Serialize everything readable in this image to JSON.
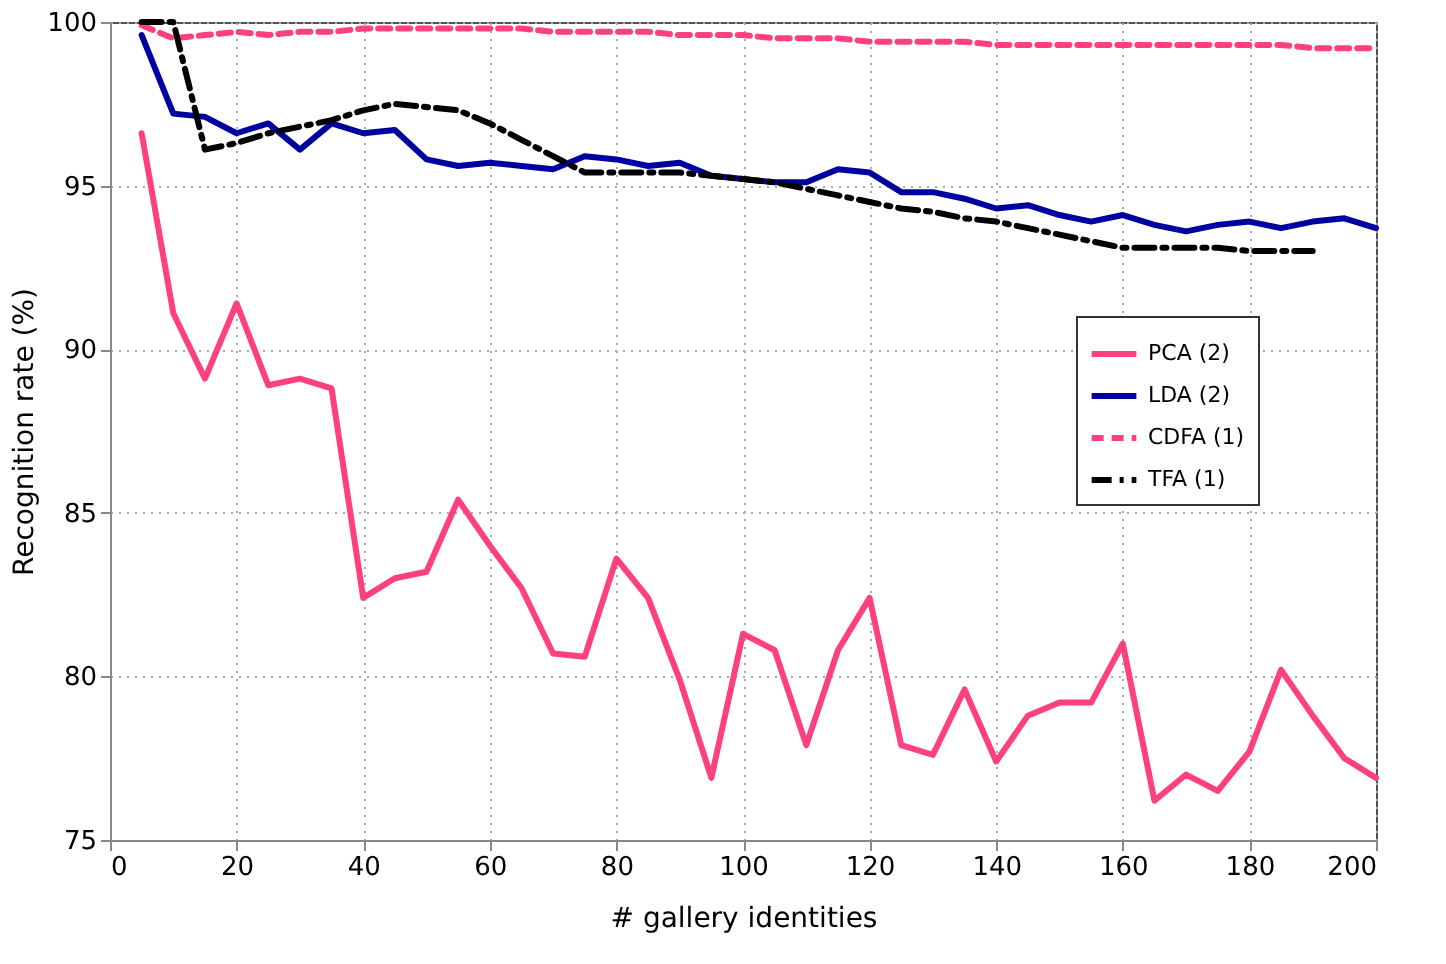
{
  "chart_data": {
    "type": "line",
    "xlabel": "# gallery identities",
    "ylabel": "Recognition rate (%)",
    "x": [
      5,
      10,
      15,
      20,
      25,
      30,
      35,
      40,
      45,
      50,
      55,
      60,
      65,
      70,
      75,
      80,
      85,
      90,
      95,
      100,
      105,
      110,
      115,
      120,
      125,
      130,
      135,
      140,
      145,
      150,
      155,
      160,
      165,
      170,
      175,
      180,
      185,
      190,
      195,
      200
    ],
    "series": [
      {
        "name": "PCA (2)",
        "color": "#ff4080",
        "line_style": "solid",
        "values": [
          96.6,
          91.1,
          89.1,
          91.4,
          88.9,
          89.1,
          88.8,
          82.4,
          83.0,
          83.2,
          85.4,
          84.0,
          82.7,
          80.7,
          80.6,
          83.6,
          82.4,
          79.9,
          76.9,
          81.3,
          80.8,
          77.9,
          80.8,
          82.4,
          77.9,
          77.6,
          79.6,
          77.4,
          78.8,
          79.2,
          79.2,
          81.0,
          76.2,
          77.0,
          76.5,
          77.7,
          80.2,
          78.8,
          77.5,
          76.9
        ]
      },
      {
        "name": "LDA (2)",
        "color": "#0000a0",
        "line_style": "solid",
        "values": [
          99.6,
          97.2,
          97.1,
          96.6,
          96.9,
          96.1,
          96.9,
          96.6,
          96.7,
          95.8,
          95.6,
          95.7,
          95.6,
          95.5,
          95.9,
          95.8,
          95.6,
          95.7,
          95.3,
          95.2,
          95.1,
          95.1,
          95.5,
          95.4,
          94.8,
          94.8,
          94.6,
          94.3,
          94.4,
          94.1,
          93.9,
          94.1,
          93.8,
          93.6,
          93.8,
          93.9,
          93.7,
          93.9,
          94.0,
          93.7
        ]
      },
      {
        "name": "CDFA (1)",
        "color": "#ff4080",
        "line_style": "dashed",
        "values": [
          99.9,
          99.5,
          99.6,
          99.7,
          99.6,
          99.7,
          99.7,
          99.8,
          99.8,
          99.8,
          99.8,
          99.8,
          99.8,
          99.7,
          99.7,
          99.7,
          99.7,
          99.6,
          99.6,
          99.6,
          99.5,
          99.5,
          99.5,
          99.4,
          99.4,
          99.4,
          99.4,
          99.3,
          99.3,
          99.3,
          99.3,
          99.3,
          99.3,
          99.3,
          99.3,
          99.3,
          99.3,
          99.2,
          99.2,
          99.2
        ]
      },
      {
        "name": "TFA (1)",
        "color": "#000000",
        "line_style": "dashdot",
        "values": [
          100,
          100,
          96.1,
          96.3,
          96.6,
          96.8,
          97.0,
          97.3,
          97.5,
          97.4,
          97.3,
          96.9,
          96.4,
          95.9,
          95.4,
          95.4,
          95.4,
          95.4,
          95.3,
          95.2,
          95.1,
          94.9,
          94.7,
          94.5,
          94.3,
          94.2,
          94.0,
          93.9,
          93.7,
          93.5,
          93.3,
          93.1,
          93.1,
          93.1,
          93.1,
          93.0,
          93.0,
          93.0,
          null,
          null
        ]
      }
    ],
    "xlim": [
      0,
      200
    ],
    "xticks": [
      0,
      20,
      40,
      60,
      80,
      100,
      120,
      140,
      160,
      180,
      200
    ],
    "ylim": [
      75,
      100
    ],
    "yticks": [
      75,
      80,
      85,
      90,
      95,
      100
    ],
    "grid": true,
    "legend": "right"
  }
}
